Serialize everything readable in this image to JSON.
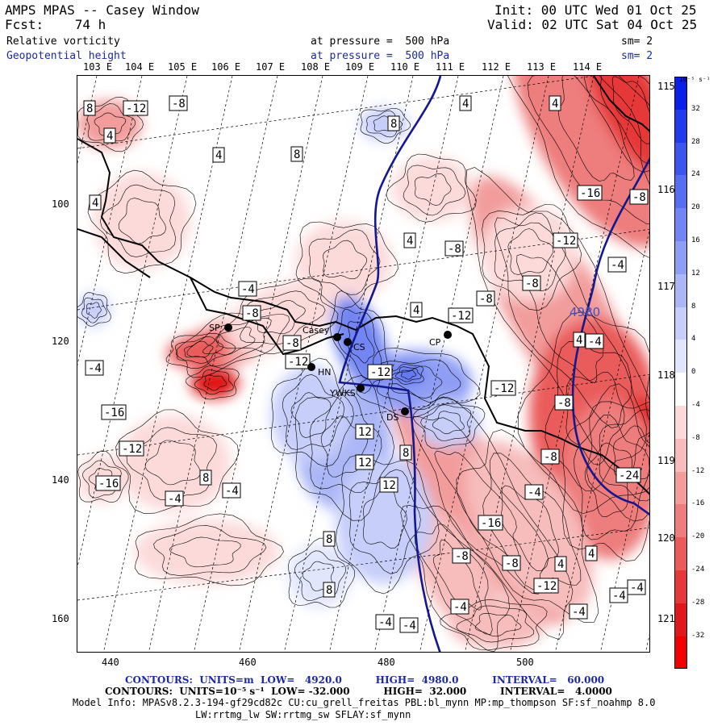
{
  "header": {
    "title": "AMPS MPAS -- Casey Window",
    "forecast": "Fcst:    74 h",
    "init": "Init: 00 UTC Wed 01 Oct 25",
    "valid": "Valid: 02 UTC Sat 04 Oct 25",
    "field1": {
      "name": "Relative vorticity",
      "pressure": "at pressure =  500 hPa",
      "smooth": "sm= 2"
    },
    "field2": {
      "name": "Geopotential height",
      "pressure": "at pressure =  500 hPa",
      "smooth": "sm= 2"
    }
  },
  "top_lon_labels": [
    "103 E",
    "104 E",
    "105 E",
    "106 E",
    "107 E",
    "108 E",
    "109 E",
    "110 E",
    "111 E",
    "112 E",
    "113 E",
    "114 E"
  ],
  "right_lon_labels": [
    "115 E",
    "116 E",
    "117 E",
    "118 E",
    "119 E",
    "120 E",
    "121 E"
  ],
  "x_axis_ticks": [
    "440",
    "460",
    "480",
    "500"
  ],
  "y_axis_ticks": [
    "100",
    "120",
    "140",
    "160"
  ],
  "colorbar": {
    "unit": "10⁻⁵ s⁻¹",
    "labels": [
      "32",
      "28",
      "24",
      "20",
      "16",
      "12",
      "8",
      "4",
      "0",
      "-4",
      "-8",
      "-12",
      "-16",
      "-20",
      "-24",
      "-28",
      "-32"
    ],
    "colors": [
      "#0a20e8",
      "#1f3bee",
      "#3a55f0",
      "#586ef2",
      "#7285f2",
      "#8f9ef4",
      "#aab6f6",
      "#c6cef9",
      "#e2e6fc",
      "#ffffff",
      "#fcdada",
      "#f7bcbc",
      "#f29c9c",
      "#ee7d7d",
      "#ea5c5c",
      "#e63838",
      "#e01818",
      "#f20000"
    ]
  },
  "stations": [
    {
      "label": "SP"
    },
    {
      "label": "Casey"
    },
    {
      "label": "CS"
    },
    {
      "label": "HN"
    },
    {
      "label": "YWKS"
    },
    {
      "label": "DS"
    },
    {
      "label": "CP"
    }
  ],
  "contour_labels": [
    "8",
    "-12",
    "-8",
    "4",
    "4",
    "8",
    "8",
    "4",
    "4",
    "-16",
    "-12",
    "-8",
    "-4",
    "-8",
    "4",
    "-4",
    "-8",
    "-8",
    "-4",
    "4",
    "-8",
    "-4",
    "4",
    "-8",
    "-12",
    "-8",
    "-16",
    "-12",
    "-16",
    "-12",
    "-24",
    "-4",
    "-4",
    "-8",
    "-12",
    "4",
    "-4",
    "-16",
    "-12",
    "-4",
    "-8",
    "-4",
    "-4",
    "-4",
    "-8",
    "-12",
    "-4",
    "-4",
    "12",
    "12",
    "12",
    "8",
    "8",
    "8",
    "8",
    "4",
    "4"
  ],
  "height_contour_label": "4980",
  "footer": {
    "line1": "CONTOURS:  UNITS=m  LOW=   4920.0          HIGH=  4980.0          INTERVAL=   60.000",
    "line2": "CONTOURS:  UNITS=10⁻⁵ s⁻¹  LOW= -32.000          HIGH=  32.000          INTERVAL=   4.0000",
    "line3": "Model Info: MPASv8.2.3-194-gf29cd82c CU:cu_grell_freitas PBL:bl_mynn MP:mp_thompson SF:sf_noahmp 8.0",
    "line4": "LW:rrtmg_lw SW:rrtmg_sw SFLAY:sf_mynn"
  }
}
